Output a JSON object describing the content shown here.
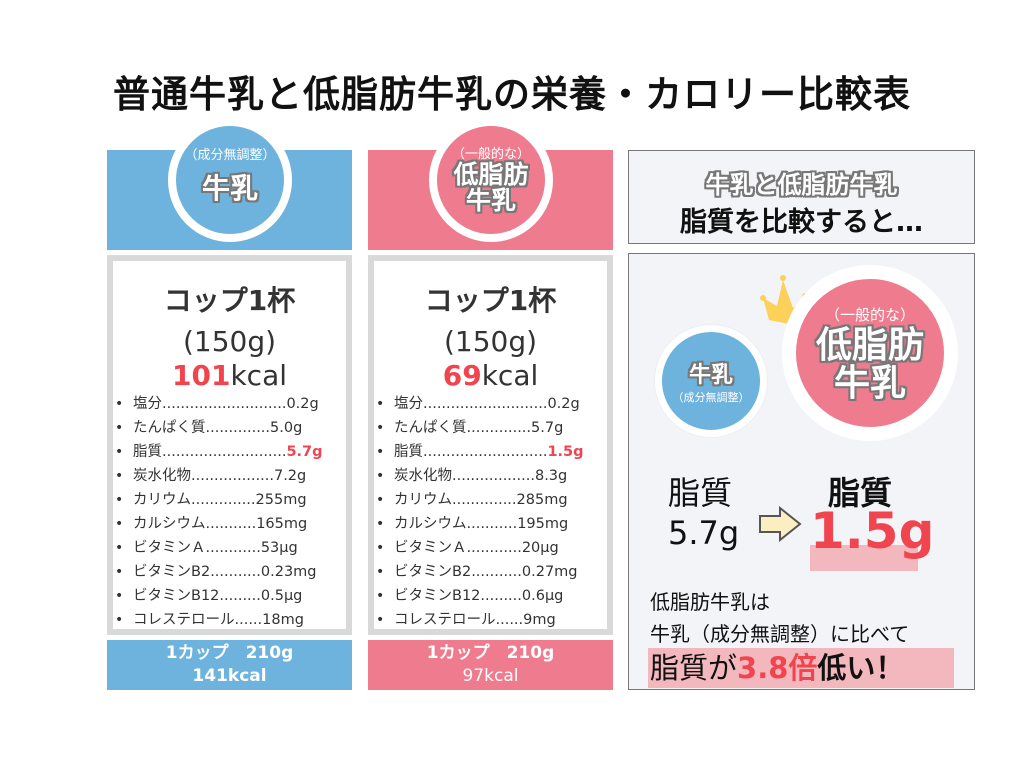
{
  "title": "普通牛乳と低脂肪牛乳の栄養・カロリー比較表",
  "columns": [
    {
      "circle_sub": "（成分無調整）",
      "circle_main": "牛乳",
      "cup": "コップ1杯",
      "grams": "(150g)",
      "kcal_num": "101",
      "kcal_unit": "kcal",
      "nutrients": [
        [
          "塩分",
          "...........................",
          "0.2g"
        ],
        [
          "たんぱく質",
          "..............",
          "5.0g"
        ],
        [
          "脂質",
          "...........................",
          "5.7g"
        ],
        [
          "炭水化物",
          "..................",
          "7.2g"
        ],
        [
          "カリウム",
          "..............",
          "255mg"
        ],
        [
          "カルシウム",
          "...........",
          "165mg"
        ],
        [
          "ビタミンＡ",
          "............",
          "53μg"
        ],
        [
          "ビタミンB2",
          "...........",
          "0.23mg"
        ],
        [
          "ビタミンB12",
          ".........",
          "0.5μg"
        ],
        [
          "コレステロール",
          "......",
          "18mg"
        ]
      ],
      "bottom_line1": "1カップ　210g",
      "bottom_line2": "141kcal",
      "color": "#6db3de"
    },
    {
      "circle_sub": "（一般的な）",
      "circle_main": "低脂肪\n牛乳",
      "cup": "コップ1杯",
      "grams": "(150g)",
      "kcal_num": "69",
      "kcal_unit": "kcal",
      "nutrients": [
        [
          "塩分",
          "...........................",
          "0.2g"
        ],
        [
          "たんぱく質",
          "..............",
          "5.7g"
        ],
        [
          "脂質",
          "...........................",
          "1.5g"
        ],
        [
          "炭水化物",
          "..................",
          "8.3g"
        ],
        [
          "カリウム",
          "..............",
          "285mg"
        ],
        [
          "カルシウム",
          "...........",
          "195mg"
        ],
        [
          "ビタミンＡ",
          "............",
          "20μg"
        ],
        [
          "ビタミンB2",
          "...........",
          "0.27mg"
        ],
        [
          "ビタミンB12",
          ".........",
          "0.6μg"
        ],
        [
          "コレステロール",
          "......",
          "9mg"
        ]
      ],
      "bottom_line1": "1カップ　210g",
      "bottom_line2": "97kcal",
      "color": "#ef7b8e"
    }
  ],
  "compare": {
    "heading1": "牛乳と低脂肪牛乳",
    "heading2": "脂質を比較すると…",
    "small_circle_main": "牛乳",
    "small_circle_sub": "（成分無調整）",
    "big_circle_sub": "（一般的な）",
    "big_circle_main1": "低脂肪",
    "big_circle_main2": "牛乳",
    "left_label": "脂質",
    "left_value": "5.7g",
    "right_label": "脂質",
    "right_value": "1.5g",
    "text1": "低脂肪牛乳は",
    "text2": "牛乳（成分無調整）に比べて",
    "conclusion_a": "脂質が",
    "conclusion_b": "3.8倍",
    "conclusion_c": "低い！",
    "icons": [
      "crown-icon",
      "arrow-right-icon"
    ],
    "accent_red": "#f0454f",
    "highlight": "#f3b8bd"
  }
}
